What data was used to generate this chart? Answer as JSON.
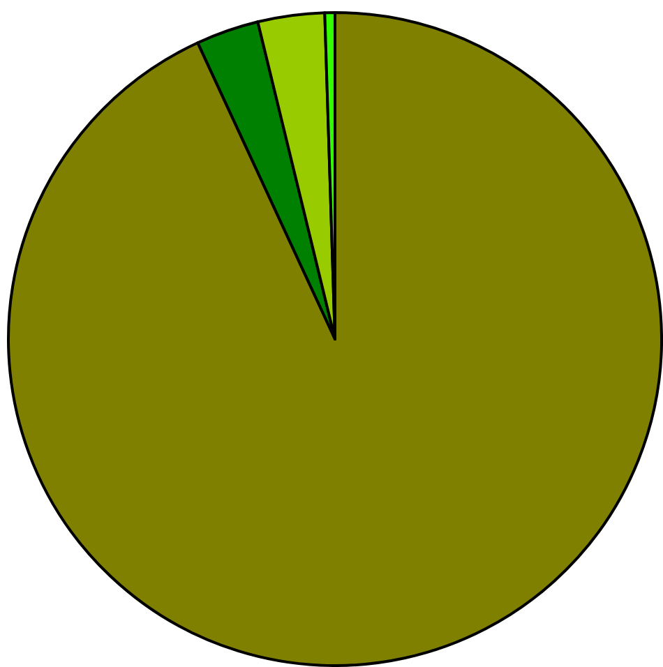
{
  "chart_data": {
    "type": "pie",
    "categories": [
      null,
      null,
      null,
      null
    ],
    "values": [
      93.1,
      3.1,
      3.3,
      0.5
    ],
    "colors": [
      "#808000",
      "#008000",
      "#99cc00",
      "#33ff00"
    ]
  }
}
